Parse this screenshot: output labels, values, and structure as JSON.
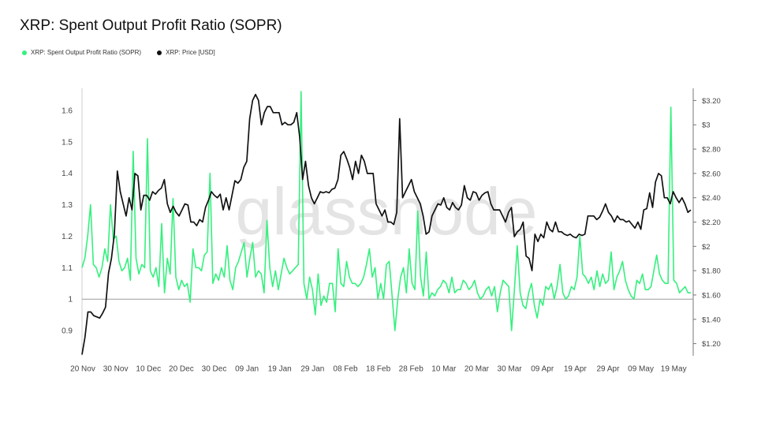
{
  "chart_data": {
    "type": "line",
    "title": "XRP: Spent Output Profit Ratio (SOPR)",
    "watermark": "glassnode",
    "legend": [
      {
        "name": "XRP: Spent Output Profit Ratio (SOPR)",
        "color": "#35f07e"
      },
      {
        "name": "XRP: Price [USD]",
        "color": "#111111"
      }
    ],
    "x_ticks": [
      "20 Nov",
      "30 Nov",
      "10 Dec",
      "20 Dec",
      "30 Dec",
      "09 Jan",
      "19 Jan",
      "29 Jan",
      "08 Feb",
      "18 Feb",
      "28 Feb",
      "10 Mar",
      "20 Mar",
      "30 Mar",
      "09 Apr",
      "19 Apr",
      "29 Apr",
      "09 May",
      "19 May"
    ],
    "y_left": {
      "ticks": [
        "0.9",
        "1",
        "1.1",
        "1.2",
        "1.3",
        "1.4",
        "1.5",
        "1.6"
      ],
      "values": [
        0.9,
        1.0,
        1.1,
        1.2,
        1.3,
        1.4,
        1.5,
        1.6
      ],
      "range": [
        0.82,
        1.67
      ],
      "reference_line": 1.0
    },
    "y_right": {
      "ticks": [
        "$1.20",
        "$1.40",
        "$1.60",
        "$1.80",
        "$2",
        "$2.20",
        "$2.40",
        "$2.60",
        "$2.80",
        "$3",
        "$3.20"
      ],
      "values": [
        1.2,
        1.4,
        1.6,
        1.8,
        2.0,
        2.2,
        2.4,
        2.6,
        2.8,
        3.0,
        3.2
      ],
      "range": [
        1.1,
        3.3
      ]
    },
    "series": [
      {
        "name": "XRP: Spent Output Profit Ratio (SOPR)",
        "axis": "left",
        "color": "#35f07e",
        "values": [
          1.1,
          1.13,
          1.2,
          1.3,
          1.11,
          1.1,
          1.07,
          1.1,
          1.16,
          1.12,
          1.3,
          1.19,
          1.2,
          1.12,
          1.09,
          1.1,
          1.13,
          1.06,
          1.47,
          1.13,
          1.08,
          1.11,
          1.1,
          1.51,
          1.09,
          1.07,
          1.1,
          1.04,
          1.24,
          1.02,
          1.13,
          1.08,
          1.32,
          1.07,
          1.03,
          1.06,
          1.04,
          1.05,
          0.99,
          1.16,
          1.1,
          1.1,
          1.09,
          1.14,
          1.15,
          1.4,
          1.05,
          1.08,
          1.06,
          1.1,
          1.07,
          1.17,
          1.06,
          1.03,
          1.1,
          1.12,
          1.15,
          1.18,
          1.07,
          1.13,
          1.18,
          1.07,
          1.09,
          1.08,
          1.02,
          1.25,
          1.1,
          1.04,
          1.09,
          1.03,
          1.08,
          1.13,
          1.1,
          1.08,
          1.09,
          1.1,
          1.11,
          1.66,
          1.05,
          1.0,
          1.07,
          1.03,
          0.95,
          1.08,
          0.98,
          1.01,
          0.99,
          1.05,
          1.05,
          0.96,
          1.16,
          1.05,
          1.04,
          1.12,
          1.07,
          1.05,
          1.05,
          1.04,
          1.05,
          1.07,
          1.11,
          1.16,
          1.07,
          1.1,
          1.0,
          1.05,
          1.0,
          1.11,
          1.12,
          1.01,
          0.9,
          1.0,
          1.07,
          1.1,
          1.02,
          1.16,
          1.05,
          1.03,
          1.28,
          1.07,
          1.01,
          1.15,
          1.0,
          1.02,
          1.01,
          1.03,
          1.04,
          1.06,
          1.05,
          1.02,
          1.07,
          1.02,
          1.03,
          1.03,
          1.06,
          1.05,
          1.03,
          1.04,
          1.06,
          1.02,
          1.0,
          1.01,
          1.03,
          1.04,
          1.01,
          1.04,
          0.96,
          1.02,
          1.06,
          1.05,
          1.04,
          0.9,
          1.03,
          1.17,
          1.02,
          0.98,
          0.97,
          1.02,
          1.05,
          0.98,
          0.94,
          1.0,
          0.98,
          1.04,
          1.03,
          1.05,
          1.0,
          1.04,
          1.11,
          1.02,
          1.0,
          1.01,
          1.04,
          1.03,
          1.07,
          1.2,
          1.08,
          1.07,
          1.05,
          1.07,
          1.03,
          1.09,
          1.04,
          1.08,
          1.05,
          1.06,
          1.15,
          1.03,
          1.07,
          1.09,
          1.12,
          1.06,
          1.03,
          1.01,
          1.0,
          1.06,
          1.05,
          1.08,
          1.03,
          1.03,
          1.04,
          1.09,
          1.14,
          1.08,
          1.06,
          1.05,
          1.05,
          1.61,
          1.06,
          1.05,
          1.02,
          1.03,
          1.04,
          1.02,
          1.02
        ]
      },
      {
        "name": "XRP: Price [USD]",
        "axis": "right",
        "color": "#111111",
        "values": [
          1.11,
          1.25,
          1.46,
          1.46,
          1.43,
          1.42,
          1.41,
          1.45,
          1.5,
          1.78,
          1.9,
          2.1,
          2.62,
          2.45,
          2.35,
          2.25,
          2.4,
          2.3,
          2.6,
          2.58,
          2.3,
          2.42,
          2.42,
          2.38,
          2.45,
          2.43,
          2.46,
          2.48,
          2.55,
          2.35,
          2.28,
          2.33,
          2.28,
          2.25,
          2.3,
          2.35,
          2.34,
          2.2,
          2.2,
          2.17,
          2.22,
          2.2,
          2.32,
          2.38,
          2.45,
          2.42,
          2.4,
          2.43,
          2.3,
          2.4,
          2.3,
          2.42,
          2.54,
          2.52,
          2.55,
          2.65,
          2.7,
          3.05,
          3.2,
          3.25,
          3.2,
          3.0,
          3.1,
          3.15,
          3.15,
          3.1,
          3.1,
          3.1,
          3.0,
          3.02,
          3.0,
          3.0,
          3.02,
          3.1,
          2.9,
          2.55,
          2.7,
          2.5,
          2.4,
          2.35,
          2.4,
          2.45,
          2.44,
          2.45,
          2.44,
          2.47,
          2.48,
          2.55,
          2.75,
          2.78,
          2.72,
          2.65,
          2.55,
          2.7,
          2.6,
          2.75,
          2.7,
          2.6,
          2.6,
          2.6,
          2.35,
          2.3,
          2.25,
          2.3,
          2.2,
          2.2,
          2.18,
          2.28,
          3.05,
          2.4,
          2.45,
          2.5,
          2.55,
          2.45,
          2.4,
          2.35,
          2.25,
          2.1,
          2.12,
          2.25,
          2.3,
          2.35,
          2.34,
          2.4,
          2.32,
          2.3,
          2.36,
          2.32,
          2.3,
          2.34,
          2.5,
          2.4,
          2.38,
          2.45,
          2.44,
          2.38,
          2.42,
          2.44,
          2.45,
          2.35,
          2.3,
          2.3,
          2.3,
          2.25,
          2.2,
          2.28,
          2.32,
          2.08,
          2.12,
          2.14,
          2.2,
          1.92,
          1.9,
          1.8,
          2.1,
          2.04,
          2.1,
          2.07,
          2.2,
          2.14,
          2.12,
          2.2,
          2.12,
          2.12,
          2.1,
          2.09,
          2.1,
          2.08,
          2.07,
          2.1,
          2.09,
          2.1,
          2.25,
          2.25,
          2.25,
          2.22,
          2.24,
          2.29,
          2.35,
          2.28,
          2.25,
          2.2,
          2.25,
          2.22,
          2.22,
          2.2,
          2.21,
          2.18,
          2.15,
          2.2,
          2.14,
          2.3,
          2.31,
          2.44,
          2.32,
          2.53,
          2.6,
          2.58,
          2.4,
          2.4,
          2.35,
          2.45,
          2.4,
          2.36,
          2.4,
          2.35,
          2.28,
          2.3
        ]
      }
    ]
  }
}
